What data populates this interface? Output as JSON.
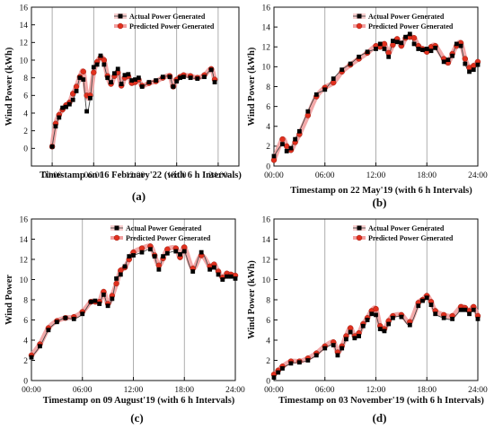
{
  "chart_data": [
    {
      "type": "line",
      "panel_label": "(a)",
      "xlabel": "Timestamp on 16 February'22 (with 6 h Intervals)",
      "ylabel": "Wind Power (kWh)",
      "xlim": [
        -3,
        27
      ],
      "ylim": [
        -2,
        16
      ],
      "xticks": [
        "00:00",
        "06:00",
        "12:00",
        "18:00",
        "24:00"
      ],
      "yticks": [
        0,
        2,
        4,
        6,
        8,
        10,
        12,
        14,
        16
      ],
      "legend_position": "top-right",
      "series": [
        {
          "name": "Actual Power Generated",
          "x": [
            0,
            0.5,
            1,
            1.5,
            2,
            2.5,
            3,
            3.5,
            4,
            4.5,
            5,
            5.5,
            6,
            6.5,
            7,
            7.5,
            8,
            8.5,
            9,
            9.5,
            10,
            10.5,
            11,
            11.5,
            12,
            12.5,
            13,
            14,
            15,
            16,
            17,
            17.5,
            18,
            18.5,
            19,
            20,
            21,
            22,
            23,
            23.5
          ],
          "y": [
            0.2,
            2.5,
            3.5,
            4.6,
            4.7,
            5.0,
            5.5,
            6.5,
            8.0,
            7.8,
            4.2,
            5.7,
            9.2,
            9.5,
            10.5,
            9.5,
            8.0,
            7.5,
            8.5,
            9.0,
            7.3,
            8.3,
            8.4,
            7.7,
            7.8,
            8.0,
            7.0,
            7.5,
            7.7,
            8.1,
            8.1,
            7.0,
            7.6,
            8.0,
            8.1,
            8.0,
            7.9,
            8.1,
            8.9,
            7.5
          ]
        },
        {
          "name": "Predicted Power Generated",
          "x": [
            0,
            0.5,
            1,
            1.5,
            2,
            2.5,
            3,
            3.5,
            4,
            4.5,
            5,
            5.5,
            6,
            6.5,
            7,
            7.5,
            8,
            8.5,
            9,
            9.5,
            10,
            10.5,
            11,
            11.5,
            12,
            12.5,
            13,
            14,
            15,
            16,
            17,
            17.5,
            18,
            18.5,
            19,
            20,
            21,
            22,
            23,
            23.5
          ],
          "y": [
            0.2,
            2.8,
            3.8,
            4.4,
            4.9,
            5.2,
            6.2,
            7.0,
            8.1,
            8.7,
            6.0,
            6.0,
            8.6,
            9.8,
            10.3,
            10.0,
            8.2,
            7.3,
            8.2,
            8.6,
            7.1,
            8.0,
            8.2,
            7.4,
            7.5,
            7.8,
            7.1,
            7.4,
            7.6,
            8.0,
            8.2,
            7.0,
            7.8,
            8.1,
            8.3,
            8.2,
            8.0,
            8.3,
            9.0,
            7.8
          ]
        }
      ]
    },
    {
      "type": "line",
      "panel_label": "(b)",
      "xlabel": "Timestamp on 22 May'19 (with 6 h Intervals)",
      "ylabel": "Wind Power (kWh)",
      "xlim": [
        0,
        24
      ],
      "ylim": [
        0,
        16
      ],
      "xticks": [
        "00:00",
        "06:00",
        "12:00",
        "18:00",
        "24:00"
      ],
      "yticks": [
        0,
        2,
        4,
        6,
        8,
        10,
        12,
        14,
        16
      ],
      "legend_position": "top-right",
      "series": [
        {
          "name": "Actual Power Generated",
          "x": [
            0,
            1,
            1.5,
            2,
            2.5,
            3,
            4,
            5,
            6,
            7,
            8,
            9,
            10,
            11,
            12,
            12.5,
            13,
            13.5,
            14,
            14.5,
            15,
            15.5,
            16,
            16.5,
            17,
            17.5,
            18,
            18.5,
            19,
            20,
            20.5,
            21,
            21.5,
            22,
            22.5,
            23,
            23.5,
            24
          ],
          "y": [
            1.0,
            2.2,
            1.5,
            1.8,
            2.7,
            3.5,
            5.5,
            7.2,
            7.7,
            8.8,
            9.7,
            10.3,
            11.0,
            11.5,
            11.8,
            12.3,
            11.8,
            11.0,
            12.6,
            12.5,
            12.4,
            13.0,
            13.3,
            12.3,
            11.8,
            11.7,
            11.8,
            11.6,
            11.9,
            10.5,
            10.7,
            11.1,
            12.3,
            12.1,
            10.3,
            9.5,
            9.7,
            10.2
          ]
        },
        {
          "name": "Predicted Power Generated",
          "x": [
            0,
            1,
            1.5,
            2,
            2.5,
            3,
            4,
            5,
            6,
            7,
            8,
            9,
            10,
            11,
            12,
            12.5,
            13,
            13.5,
            14,
            14.5,
            15,
            15.5,
            16,
            16.5,
            17,
            17.5,
            18,
            18.5,
            19,
            20,
            20.5,
            21,
            21.5,
            22,
            22.5,
            23,
            23.5,
            24
          ],
          "y": [
            0.6,
            2.7,
            2.0,
            1.6,
            2.4,
            3.2,
            5.1,
            7.0,
            7.9,
            8.4,
            9.5,
            10.2,
            10.8,
            11.4,
            12.1,
            12.0,
            12.3,
            11.4,
            12.2,
            12.8,
            12.1,
            12.9,
            13.0,
            12.9,
            12.1,
            11.8,
            11.5,
            12.0,
            12.1,
            10.8,
            10.4,
            11.3,
            12.1,
            12.4,
            10.8,
            9.9,
            10.1,
            10.5
          ]
        }
      ]
    },
    {
      "type": "line",
      "panel_label": "(c)",
      "xlabel": "Timestamp on 09 August'19 (with 6 h Intervals)",
      "ylabel": "Wind Power",
      "xlim": [
        0,
        24
      ],
      "ylim": [
        0,
        16
      ],
      "xticks": [
        "00:00",
        "06:00",
        "12:00",
        "18:00",
        "24:00"
      ],
      "yticks": [
        0,
        2,
        4,
        6,
        8,
        10,
        12,
        14,
        16
      ],
      "legend_position": "top-right",
      "series": [
        {
          "name": "Actual Power Generated",
          "x": [
            0,
            1,
            2,
            3,
            4,
            5,
            6,
            7,
            7.5,
            8,
            8.5,
            9,
            9.5,
            10,
            10.5,
            11,
            11.5,
            12,
            13,
            14,
            14.5,
            15,
            15.5,
            16,
            17,
            17.5,
            18,
            19,
            20,
            21,
            21.5,
            22,
            22.5,
            23,
            23.5,
            24
          ],
          "y": [
            2.3,
            3.4,
            5.0,
            5.8,
            6.2,
            6.1,
            6.6,
            7.8,
            7.9,
            7.6,
            8.5,
            7.4,
            8.1,
            10.1,
            10.5,
            11.3,
            12.3,
            12.4,
            12.7,
            13.0,
            12.3,
            11.0,
            12.3,
            12.6,
            12.8,
            12.5,
            12.8,
            10.8,
            12.7,
            11.0,
            11.2,
            10.5,
            10.0,
            10.3,
            10.3,
            10.1
          ]
        },
        {
          "name": "Predicted Power Generated",
          "x": [
            0,
            1,
            2,
            3,
            4,
            5,
            6,
            7,
            7.5,
            8,
            8.5,
            9,
            9.5,
            10,
            10.5,
            11,
            11.5,
            12,
            13,
            14,
            14.5,
            15,
            15.5,
            16,
            17,
            17.5,
            18,
            19,
            20,
            21,
            21.5,
            22,
            22.5,
            23,
            23.5,
            24
          ],
          "y": [
            2.5,
            3.6,
            5.2,
            5.9,
            6.2,
            6.3,
            6.8,
            7.8,
            7.8,
            7.8,
            8.8,
            7.6,
            8.4,
            9.6,
            10.9,
            11.2,
            12.0,
            12.7,
            13.1,
            13.3,
            12.4,
            11.4,
            12.1,
            13.0,
            13.1,
            12.2,
            13.2,
            11.1,
            12.4,
            11.3,
            11.5,
            10.8,
            10.2,
            10.6,
            10.5,
            10.4
          ]
        }
      ]
    },
    {
      "type": "line",
      "panel_label": "(d)",
      "xlabel": "Timestamp on 03 November'19 (with 6 h Intervals)",
      "ylabel": "Wind Power (kWh)",
      "xlim": [
        0,
        24
      ],
      "ylim": [
        0,
        16
      ],
      "xticks": [
        "00:00",
        "06:00",
        "12:00",
        "18:00",
        "24:00"
      ],
      "yticks": [
        0,
        2,
        4,
        6,
        8,
        10,
        12,
        14,
        16
      ],
      "legend_position": "top-right",
      "series": [
        {
          "name": "Actual Power Generated",
          "x": [
            0,
            0.5,
            1,
            2,
            3,
            4,
            5,
            6,
            7,
            7.5,
            8,
            8.5,
            9,
            9.5,
            10,
            10.5,
            11,
            11.5,
            12,
            12.5,
            13,
            13.5,
            14,
            15,
            16,
            17,
            17.5,
            18,
            18.5,
            19,
            20,
            21,
            22,
            22.5,
            23,
            23.5,
            24
          ],
          "y": [
            0.3,
            0.8,
            1.2,
            1.7,
            1.8,
            2.0,
            2.5,
            3.2,
            3.5,
            2.5,
            3.2,
            4.1,
            4.8,
            4.2,
            4.4,
            5.4,
            6.0,
            6.6,
            6.5,
            5.1,
            4.9,
            5.6,
            6.2,
            6.3,
            5.5,
            7.4,
            7.9,
            8.2,
            7.5,
            6.6,
            6.2,
            6.1,
            7.0,
            7.0,
            6.6,
            7.0,
            6.1
          ]
        },
        {
          "name": "Predicted Power Generated",
          "x": [
            0,
            0.5,
            1,
            2,
            3,
            4,
            5,
            6,
            7,
            7.5,
            8,
            8.5,
            9,
            9.5,
            10,
            10.5,
            11,
            11.5,
            12,
            12.5,
            13,
            13.5,
            14,
            15,
            16,
            17,
            17.5,
            18,
            18.5,
            19,
            20,
            21,
            22,
            22.5,
            23,
            23.5,
            24
          ],
          "y": [
            0.6,
            1.0,
            1.4,
            1.9,
            1.9,
            2.2,
            2.7,
            3.4,
            3.8,
            2.8,
            3.4,
            4.4,
            5.2,
            4.4,
            4.7,
            5.6,
            6.2,
            6.9,
            7.1,
            5.4,
            5.1,
            5.9,
            6.4,
            6.5,
            5.8,
            7.7,
            8.0,
            8.4,
            7.8,
            6.9,
            6.5,
            6.4,
            7.3,
            7.2,
            6.9,
            7.3,
            6.4
          ]
        }
      ]
    }
  ]
}
